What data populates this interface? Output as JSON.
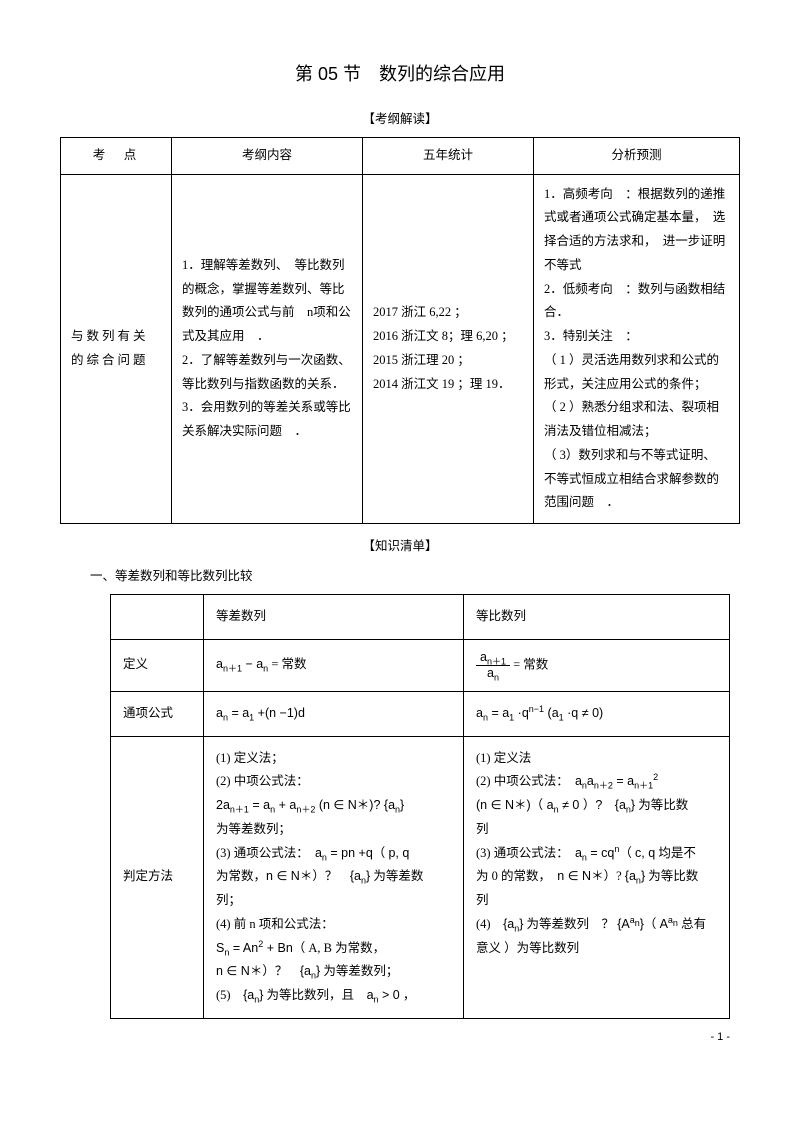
{
  "title": "第 05 节　数列的综合应用",
  "section1_label": "【考纲解读】",
  "table1": {
    "headers": [
      "考　点",
      "考纲内容",
      "五年统计",
      "分析预测"
    ],
    "row": [
      "与数列有关的综合问题",
      "1．理解等差数列、　等比数列的概念，掌握等差数列、等比数列的通项公式与前　n项和公式及其应用　．\n2．了解等差数列与一次函数、等比数列与指数函数的关系．\n3．会用数列的等差关系或等比关系解决实际问题　．",
      "2017 浙江  6,22  ；\n2016 浙江文  8；理 6,20 ；\n2015 浙江理  20 ；\n2014 浙江文  19 ；理 19．",
      "1．高频考向　：根据数列的递推式或者通项公式确定基本量，　选择合适的方法求和，　进一步证明不等式\n2．低频考向　：数列与函数相结合．\n3．特别关注　：\n（ 1 ）灵活选用数列求和公式的形式，关注应用公式的条件；\n（ 2 ）熟悉分组求和法、裂项相消法及错位相减法；\n（ 3）数列求和与不等式证明、　不等式恒成立相结合求解参数的范围问题　．"
    ]
  },
  "section2_label": "【知识清单】",
  "compare_title": "一、等差数列和等比数列比较",
  "table2": {
    "col_headers": [
      "",
      "等差数列",
      "等比数列"
    ],
    "rows": [
      {
        "label": "定义",
        "a_html": "<span class='math'>a<sub>n＋1</sub> − a<sub>n</sub></span> = 常数",
        "b_html": "<span class='frac'><span class='num math'>a<sub>n＋1</sub></span><span class='den math'>a<sub>n</sub></span></span> = 常数"
      },
      {
        "label": "通项公式",
        "a_html": "<span class='math'>a<sub>n</sub> = a<sub>1</sub> +(n −1)d</span>",
        "b_html": "<span class='math'>a<sub>n</sub> = a<sub>1</sub> ·q<sup>n−1</sup> (a<sub>1</sub> ·q ≠ 0)</span>"
      },
      {
        "label": "判定方法",
        "a_html": "(1) 定义法；<br>(2) 中项公式法：<br><span class='math'>2a<sub>n＋1</sub> = a<sub>n</sub> + a<sub>n＋2</sub> (n ∈ N＊)?  {a<sub>n</sub>}</span><br>为等差数列；<br>(3) 通项公式法：　<span class='math'>a<sub>n</sub> = pn +q</span>（ <span class='math'>p, q</span><br>为常数，<span class='math'>n ∈ N＊</span>）？　<span class='math'>{a<sub>n</sub>}</span> 为等差数<br>列；<br>(4) 前 n 项和公式法：<br><span class='math'>S<sub>n</sub> = An<sup>2</sup> + Bn</span>（ A, B 为常数，<br><span class='math'>n ∈ N＊</span>）？　<span class='math'>{a<sub>n</sub>}</span> 为等差数列；<br>(5)　<span class='math'>{a<sub>n</sub>}</span> 为等比数列，且　<span class='math'>a<sub>n</sub> > 0</span> ，",
        "b_html": "(1) 定义法<br>(2) 中项公式法：　<span class='math'>a<sub>n</sub>a<sub>n＋2</sub> = a<sub>n＋1</sub><sup>2</sup></span><br><span class='math'>(n ∈ N＊)（ a<sub>n</sub> ≠ 0 ）?　{a<sub>n</sub>}</span> 为等比数<br>列<br>(3) 通项公式法：　<span class='math'>a<sub>n</sub> = cq<sup>n</sup></span>（ <span class='math'>c, q</span> 均是不<br>为 0 的常数，　<span class='math'>n ∈ N＊</span>）?  <span class='math'>{a<sub>n</sub>}</span> 为等比数<br>列<br>(4)　<span class='math'>{a<sub>n</sub>}</span> 为等差数列　？ <span class='math'>{A<sup>a<sub>n</sub></sup>}</span>（ <span class='math'>A<sup>a<sub>n</sub></sup></span> 总有<br>意义 ）为等比数列"
      }
    ]
  },
  "page_num": "- 1 -"
}
